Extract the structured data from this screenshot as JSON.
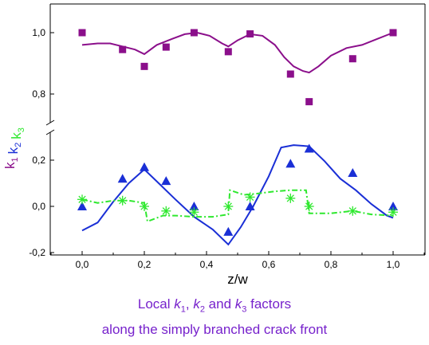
{
  "chart_data": {
    "type": "scatter",
    "xlabel": "z/w",
    "x_ticks": [
      "0,0",
      "0,2",
      "0,4",
      "0,6",
      "0,8",
      "1,0"
    ],
    "xlim": [
      -0.1,
      1.1
    ],
    "ylabel_parts": [
      {
        "text": "k",
        "sub": "1",
        "color": "#8b0f8b"
      },
      {
        "text": "k",
        "sub": "2",
        "color": "#1a2fd6"
      },
      {
        "text": "k",
        "sub": "3",
        "color": "#2ee82e"
      }
    ],
    "upper_panel": {
      "ylim": [
        0.65,
        1.1
      ],
      "y_ticks": [
        "0,8",
        "1,0"
      ],
      "series": [
        {
          "key": "k1",
          "marker": "square",
          "color": "#8b0f8b",
          "points": [
            [
              0.0,
              1.0
            ],
            [
              0.13,
              0.945
            ],
            [
              0.2,
              0.89
            ],
            [
              0.27,
              0.953
            ],
            [
              0.36,
              1.0
            ],
            [
              0.47,
              0.938
            ],
            [
              0.54,
              0.996
            ],
            [
              0.67,
              0.865
            ],
            [
              0.73,
              0.775
            ],
            [
              0.87,
              0.915
            ],
            [
              1.0,
              1.0
            ]
          ],
          "curve": [
            [
              0.0,
              0.96
            ],
            [
              0.05,
              0.965
            ],
            [
              0.09,
              0.965
            ],
            [
              0.13,
              0.955
            ],
            [
              0.17,
              0.945
            ],
            [
              0.2,
              0.93
            ],
            [
              0.24,
              0.96
            ],
            [
              0.29,
              0.98
            ],
            [
              0.33,
              0.995
            ],
            [
              0.37,
              1.0
            ],
            [
              0.41,
              0.99
            ],
            [
              0.45,
              0.965
            ],
            [
              0.47,
              0.955
            ],
            [
              0.5,
              0.975
            ],
            [
              0.54,
              0.995
            ],
            [
              0.58,
              0.99
            ],
            [
              0.62,
              0.96
            ],
            [
              0.65,
              0.92
            ],
            [
              0.68,
              0.89
            ],
            [
              0.71,
              0.875
            ],
            [
              0.73,
              0.87
            ],
            [
              0.76,
              0.89
            ],
            [
              0.8,
              0.925
            ],
            [
              0.85,
              0.95
            ],
            [
              0.9,
              0.96
            ],
            [
              0.95,
              0.98
            ],
            [
              1.0,
              1.0
            ]
          ]
        }
      ]
    },
    "lower_panel": {
      "ylim": [
        -0.2,
        0.36
      ],
      "y_ticks": [
        "-0,2",
        "0,0",
        "0,2"
      ],
      "series": [
        {
          "key": "k2",
          "marker": "triangle",
          "color": "#1a2fd6",
          "points": [
            [
              0.0,
              0.0
            ],
            [
              0.13,
              0.12
            ],
            [
              0.2,
              0.17
            ],
            [
              0.27,
              0.11
            ],
            [
              0.36,
              0.0
            ],
            [
              0.47,
              -0.11
            ],
            [
              0.54,
              0.0
            ],
            [
              0.67,
              0.185
            ],
            [
              0.73,
              0.25
            ],
            [
              0.87,
              0.145
            ],
            [
              1.0,
              0.0
            ]
          ],
          "curve": [
            [
              0.0,
              -0.105
            ],
            [
              0.05,
              -0.07
            ],
            [
              0.1,
              0.02
            ],
            [
              0.15,
              0.1
            ],
            [
              0.2,
              0.16
            ],
            [
              0.25,
              0.095
            ],
            [
              0.3,
              0.03
            ],
            [
              0.36,
              -0.045
            ],
            [
              0.42,
              -0.1
            ],
            [
              0.47,
              -0.165
            ],
            [
              0.51,
              -0.09
            ],
            [
              0.55,
              0.0
            ],
            [
              0.6,
              0.13
            ],
            [
              0.64,
              0.255
            ],
            [
              0.68,
              0.265
            ],
            [
              0.73,
              0.26
            ],
            [
              0.78,
              0.195
            ],
            [
              0.83,
              0.12
            ],
            [
              0.88,
              0.07
            ],
            [
              0.93,
              0.01
            ],
            [
              0.98,
              -0.04
            ],
            [
              1.0,
              -0.05
            ]
          ]
        },
        {
          "key": "k3",
          "marker": "asterisk",
          "color": "#2ee82e",
          "points": [
            [
              0.0,
              0.03
            ],
            [
              0.13,
              0.025
            ],
            [
              0.2,
              0.0
            ],
            [
              0.27,
              -0.02
            ],
            [
              0.36,
              -0.025
            ],
            [
              0.47,
              0.0
            ],
            [
              0.54,
              0.04
            ],
            [
              0.67,
              0.035
            ],
            [
              0.73,
              0.0
            ],
            [
              0.87,
              -0.02
            ],
            [
              1.0,
              -0.025
            ]
          ],
          "curve": [
            [
              0.0,
              0.03
            ],
            [
              0.05,
              0.015
            ],
            [
              0.1,
              0.025
            ],
            [
              0.15,
              0.025
            ],
            [
              0.2,
              0.015
            ],
            [
              0.21,
              -0.065
            ],
            [
              0.26,
              -0.04
            ],
            [
              0.3,
              -0.04
            ],
            [
              0.36,
              -0.045
            ],
            [
              0.42,
              -0.045
            ],
            [
              0.47,
              -0.035
            ],
            [
              0.475,
              0.07
            ],
            [
              0.52,
              0.05
            ],
            [
              0.56,
              0.055
            ],
            [
              0.62,
              0.065
            ],
            [
              0.67,
              0.07
            ],
            [
              0.72,
              0.07
            ],
            [
              0.73,
              -0.03
            ],
            [
              0.8,
              -0.03
            ],
            [
              0.87,
              -0.02
            ],
            [
              0.93,
              -0.035
            ],
            [
              1.0,
              -0.04
            ]
          ]
        }
      ]
    },
    "caption": {
      "line1_prefix": "Local ",
      "k": "k",
      "sub1": "1",
      "sep1": ", ",
      "sub2": "2",
      "sep2": " and ",
      "sub3": "3",
      "line1_suffix": " factors",
      "line2": "along the simply branched crack front"
    }
  }
}
